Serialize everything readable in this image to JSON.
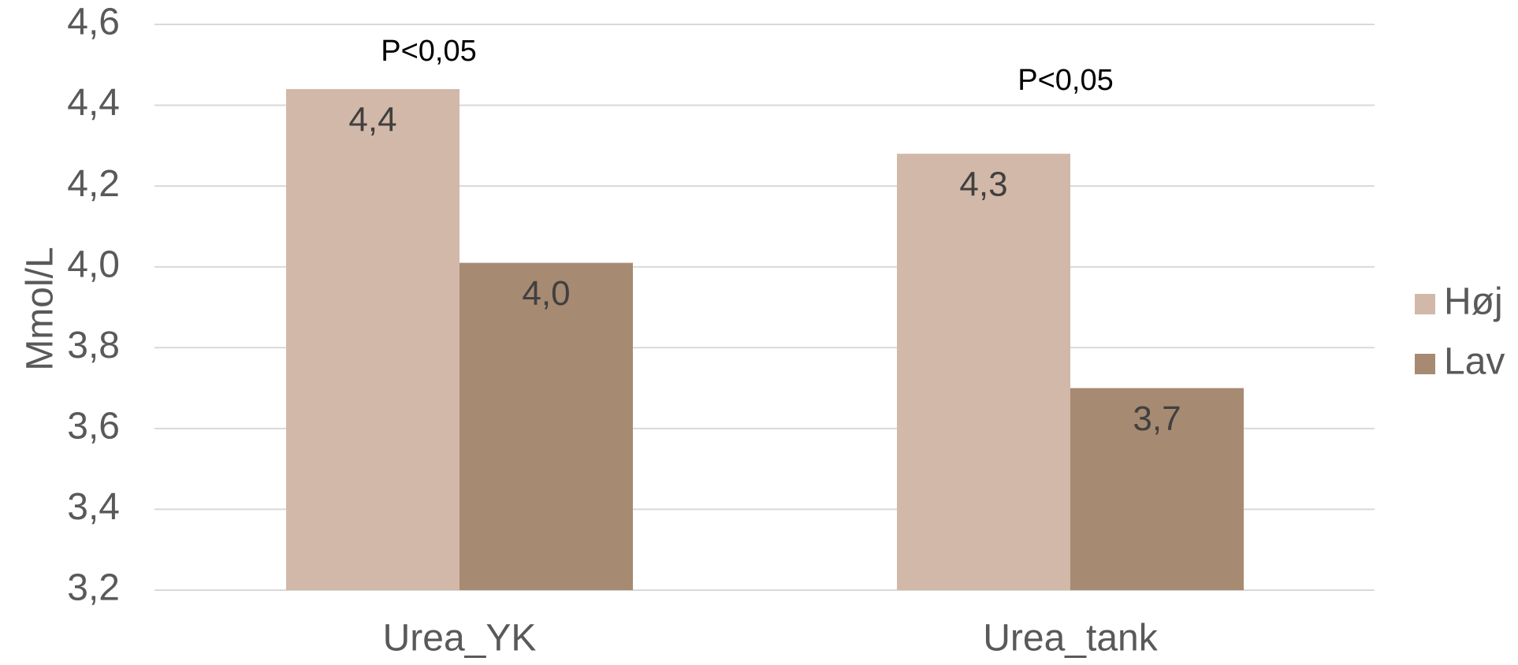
{
  "chart_data": {
    "type": "bar",
    "title": "",
    "xlabel": "",
    "ylabel": "Mmol/L",
    "categories": [
      "Urea_YK",
      "Urea_tank"
    ],
    "series": [
      {
        "name": "Høj",
        "values": [
          4.44,
          4.28
        ],
        "labels": [
          "4,4",
          "4,3"
        ],
        "color": "#d2b8a8"
      },
      {
        "name": "Lav",
        "values": [
          4.01,
          3.7
        ],
        "labels": [
          "4,0",
          "3,7"
        ],
        "color": "#a78a72"
      }
    ],
    "ylim": [
      3.2,
      4.6
    ],
    "yticks": [
      {
        "value": 3.2,
        "label": "3,2"
      },
      {
        "value": 3.4,
        "label": "3,4"
      },
      {
        "value": 3.6,
        "label": "3,6"
      },
      {
        "value": 3.8,
        "label": "3,8"
      },
      {
        "value": 4.0,
        "label": "4,0"
      },
      {
        "value": 4.2,
        "label": "4,2"
      },
      {
        "value": 4.4,
        "label": "4,4"
      },
      {
        "value": 4.6,
        "label": "4,6"
      }
    ],
    "annotations": [
      "P<0,05",
      "P<0,05"
    ],
    "grid": true,
    "legend_position": "right"
  }
}
